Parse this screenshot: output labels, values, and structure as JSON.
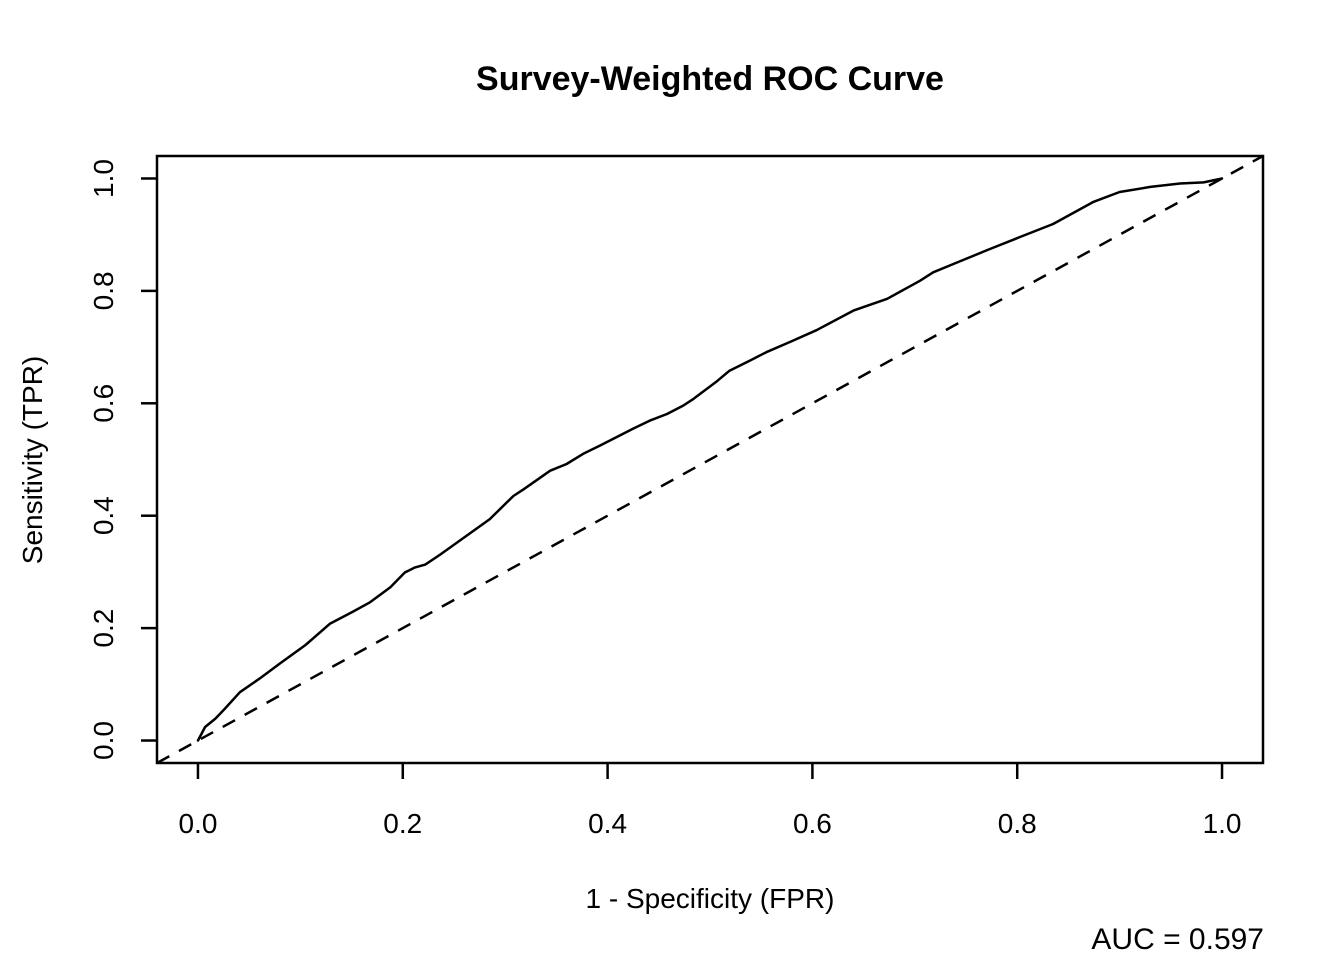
{
  "figure": {
    "background": "#ffffff",
    "foreground": "#000000"
  },
  "chart_data": {
    "type": "line",
    "title": "Survey-Weighted ROC Curve",
    "xlabel": "1 - Specificity (FPR)",
    "ylabel": "Sensitivity (TPR)",
    "xlim": [
      -0.04,
      1.04
    ],
    "ylim": [
      -0.04,
      1.04
    ],
    "x_ticks": [
      0.0,
      0.2,
      0.4,
      0.6,
      0.8,
      1.0
    ],
    "y_ticks": [
      0.0,
      0.2,
      0.4,
      0.6,
      0.8,
      1.0
    ],
    "x_tick_labels": [
      "0.0",
      "0.2",
      "0.4",
      "0.6",
      "0.8",
      "1.0"
    ],
    "y_tick_labels": [
      "0.0",
      "0.2",
      "0.4",
      "0.6",
      "0.8",
      "1.0"
    ],
    "grid": false,
    "legend": "none",
    "annotations": [
      "AUC = 0.597"
    ],
    "auc_value": 0.597,
    "series": [
      {
        "name": "survey-weighted ROC curve",
        "style": "solid",
        "color": "#000000",
        "points": [
          [
            0.0,
            0.0
          ],
          [
            0.007,
            0.024
          ],
          [
            0.017,
            0.039
          ],
          [
            0.026,
            0.056
          ],
          [
            0.041,
            0.086
          ],
          [
            0.06,
            0.11
          ],
          [
            0.08,
            0.137
          ],
          [
            0.105,
            0.17
          ],
          [
            0.129,
            0.208
          ],
          [
            0.15,
            0.228
          ],
          [
            0.168,
            0.246
          ],
          [
            0.188,
            0.273
          ],
          [
            0.202,
            0.299
          ],
          [
            0.212,
            0.308
          ],
          [
            0.222,
            0.313
          ],
          [
            0.236,
            0.33
          ],
          [
            0.256,
            0.356
          ],
          [
            0.285,
            0.394
          ],
          [
            0.308,
            0.435
          ],
          [
            0.318,
            0.447
          ],
          [
            0.344,
            0.48
          ],
          [
            0.36,
            0.492
          ],
          [
            0.376,
            0.51
          ],
          [
            0.393,
            0.525
          ],
          [
            0.409,
            0.54
          ],
          [
            0.425,
            0.555
          ],
          [
            0.441,
            0.569
          ],
          [
            0.458,
            0.581
          ],
          [
            0.474,
            0.596
          ],
          [
            0.484,
            0.608
          ],
          [
            0.506,
            0.638
          ],
          [
            0.519,
            0.658
          ],
          [
            0.539,
            0.676
          ],
          [
            0.555,
            0.691
          ],
          [
            0.578,
            0.709
          ],
          [
            0.604,
            0.73
          ],
          [
            0.64,
            0.765
          ],
          [
            0.673,
            0.786
          ],
          [
            0.705,
            0.818
          ],
          [
            0.718,
            0.833
          ],
          [
            0.738,
            0.848
          ],
          [
            0.77,
            0.872
          ],
          [
            0.803,
            0.896
          ],
          [
            0.835,
            0.919
          ],
          [
            0.874,
            0.958
          ],
          [
            0.9,
            0.976
          ],
          [
            0.93,
            0.985
          ],
          [
            0.959,
            0.991
          ],
          [
            0.982,
            0.993
          ],
          [
            1.0,
            1.0
          ]
        ]
      },
      {
        "name": "chance diagonal",
        "style": "dashed",
        "color": "#000000",
        "points": [
          [
            -0.04,
            -0.04
          ],
          [
            1.04,
            1.04
          ]
        ]
      }
    ]
  }
}
